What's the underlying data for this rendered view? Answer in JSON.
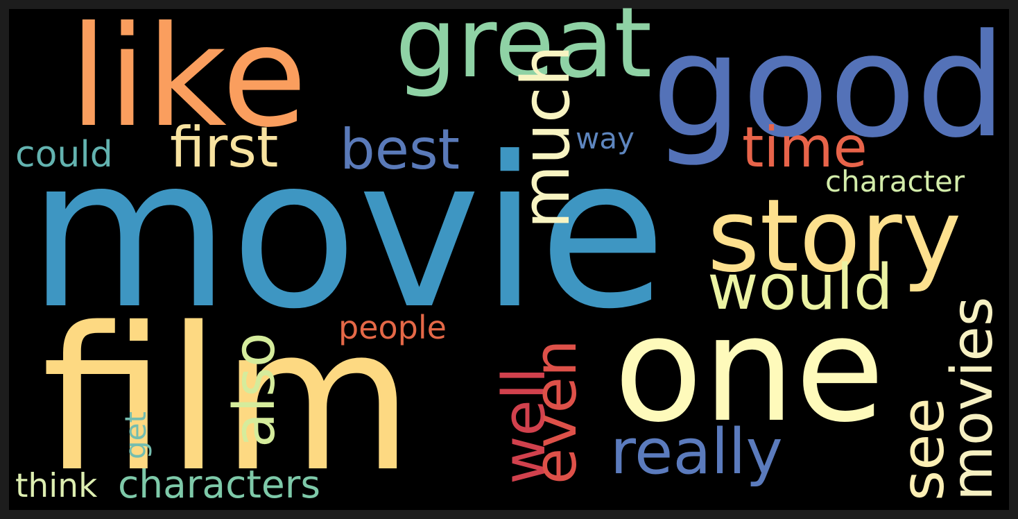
{
  "wordcloud": {
    "colors": {
      "background": "#000000",
      "frame": "#1d1d1d"
    },
    "words": [
      {
        "text": "movie",
        "color": "#3e96c2"
      },
      {
        "text": "film",
        "color": "#fdd982"
      },
      {
        "text": "like",
        "color": "#fa9e5e"
      },
      {
        "text": "good",
        "color": "#5472b8"
      },
      {
        "text": "great",
        "color": "#8fd2a5"
      },
      {
        "text": "one",
        "color": "#fefabb"
      },
      {
        "text": "story",
        "color": "#fde08e"
      },
      {
        "text": "would",
        "color": "#ecf3a3"
      },
      {
        "text": "time",
        "color": "#e8644a"
      },
      {
        "text": "first",
        "color": "#f8e3a0"
      },
      {
        "text": "best",
        "color": "#5a7ab9"
      },
      {
        "text": "much",
        "color": "#f8f4c2"
      },
      {
        "text": "really",
        "color": "#5b7bbd"
      },
      {
        "text": "also",
        "color": "#d5ec9c"
      },
      {
        "text": "well",
        "color": "#d1414d"
      },
      {
        "text": "even",
        "color": "#de5149"
      },
      {
        "text": "see",
        "color": "#fcefb4"
      },
      {
        "text": "movies",
        "color": "#f6f0c2"
      },
      {
        "text": "characters",
        "color": "#7ec9a9"
      },
      {
        "text": "could",
        "color": "#63b3b0"
      },
      {
        "text": "people",
        "color": "#e46847"
      },
      {
        "text": "character",
        "color": "#d3ecaa"
      },
      {
        "text": "think",
        "color": "#ddeeb1"
      },
      {
        "text": "way",
        "color": "#5e86bf"
      },
      {
        "text": "get",
        "color": "#74bdaf"
      }
    ]
  }
}
